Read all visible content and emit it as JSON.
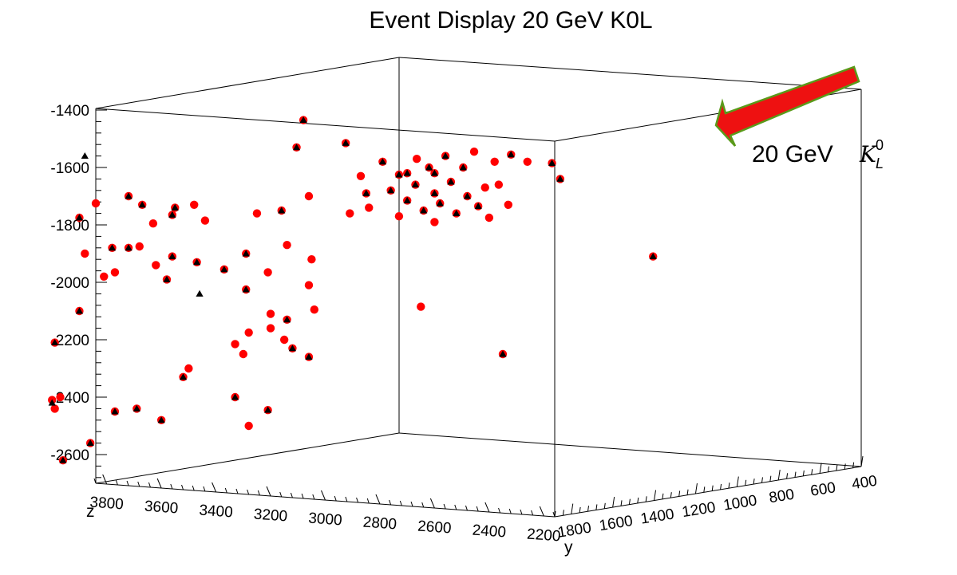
{
  "chart_data": {
    "type": "scatter",
    "title": "Event Display   20 GeV K0L",
    "axes": {
      "vertical": {
        "ticks": [
          "-1400",
          "-1600",
          "-1800",
          "-2000",
          "-2200",
          "-2400",
          "-2600"
        ]
      },
      "z": {
        "name": "z",
        "ticks": [
          "3800",
          "3600",
          "3400",
          "3200",
          "3000",
          "2800",
          "2600",
          "2400",
          "2200"
        ]
      },
      "y": {
        "name": "y",
        "ticks": [
          "1800",
          "1600",
          "1400",
          "1200",
          "1000",
          "800",
          "600",
          "400"
        ]
      }
    },
    "grid": false,
    "annotation": {
      "text": "20 GeV",
      "symbol": "K",
      "sub": "L",
      "sup": "0",
      "arrow_color": "#ee1111",
      "arrow_edge": "#5a9a1a"
    },
    "series": [
      {
        "marker": "red circle",
        "color": "#ff0000",
        "points": [
          [
            -1435,
            3080
          ],
          [
            -1515,
            2925
          ],
          [
            -1530,
            3105
          ],
          [
            -1555,
            2320
          ],
          [
            -1585,
            2170
          ],
          [
            -1580,
            2380
          ],
          [
            -1600,
            2620
          ],
          [
            -1640,
            2140
          ],
          [
            -1660,
            2365
          ],
          [
            -1620,
            2700
          ],
          [
            -1700,
            3060
          ],
          [
            -1690,
            2850
          ],
          [
            -1545,
            2455
          ],
          [
            -1560,
            2560
          ],
          [
            -1570,
            2665
          ],
          [
            -1580,
            2790
          ],
          [
            -1600,
            2495
          ],
          [
            -1620,
            2600
          ],
          [
            -1625,
            2730
          ],
          [
            -1630,
            2870
          ],
          [
            -1650,
            2540
          ],
          [
            -1660,
            2670
          ],
          [
            -1670,
            2415
          ],
          [
            -1680,
            2760
          ],
          [
            -1690,
            2600
          ],
          [
            -1700,
            2480
          ],
          [
            -1715,
            2700
          ],
          [
            -1725,
            2580
          ],
          [
            -1735,
            2440
          ],
          [
            -1750,
            2640
          ],
          [
            -1760,
            2520
          ],
          [
            -1770,
            2730
          ],
          [
            -1775,
            2400
          ],
          [
            -1790,
            2600
          ],
          [
            -1740,
            2840
          ],
          [
            -1760,
            2910
          ],
          [
            -1580,
            2260
          ],
          [
            -1730,
            2330
          ],
          [
            -1700,
            3720
          ],
          [
            -1725,
            3840
          ],
          [
            -1730,
            3670
          ],
          [
            -1765,
            3560
          ],
          [
            -1785,
            3440
          ],
          [
            -1795,
            3630
          ],
          [
            -1740,
            3550
          ],
          [
            -1730,
            3480
          ],
          [
            -1750,
            3160
          ],
          [
            -1760,
            3250
          ],
          [
            -1775,
            3900
          ],
          [
            -1880,
            3720
          ],
          [
            -1900,
            3290
          ],
          [
            -1870,
            3140
          ],
          [
            -1900,
            3880
          ],
          [
            -1910,
            3560
          ],
          [
            -1920,
            3050
          ],
          [
            -1930,
            3470
          ],
          [
            -1940,
            3620
          ],
          [
            -1955,
            3370
          ],
          [
            -1965,
            3210
          ],
          [
            -1980,
            3810
          ],
          [
            -1990,
            3580
          ],
          [
            -2010,
            3060
          ],
          [
            -2025,
            3290
          ],
          [
            -1875,
            3680
          ],
          [
            -1880,
            3780
          ],
          [
            -1965,
            3770
          ],
          [
            -2095,
            3040
          ],
          [
            -2110,
            3200
          ],
          [
            -2085,
            2650
          ],
          [
            -2130,
            3140
          ],
          [
            -2160,
            3200
          ],
          [
            -2175,
            3280
          ],
          [
            -2200,
            3150
          ],
          [
            -2215,
            3330
          ],
          [
            -2230,
            3120
          ],
          [
            -2250,
            3300
          ],
          [
            -2300,
            3500
          ],
          [
            -2330,
            3520
          ],
          [
            -2100,
            3900
          ],
          [
            -2260,
            3060
          ],
          [
            -2400,
            3330
          ],
          [
            -2440,
            3690
          ],
          [
            -2480,
            3600
          ],
          [
            -2445,
            3210
          ],
          [
            -2500,
            3280
          ],
          [
            -2210,
            3990
          ],
          [
            -2620,
            3960
          ],
          [
            -2560,
            3860
          ],
          [
            -2450,
            3770
          ],
          [
            -2250,
            2350
          ],
          [
            -1910,
            1800
          ],
          [
            -2410,
            4000
          ],
          [
            -2440,
            3990
          ],
          [
            -2400,
            3970
          ]
        ]
      },
      {
        "marker": "black triangle",
        "color": "#000000",
        "points": [
          [
            -1435,
            3080
          ],
          [
            -1515,
            2925
          ],
          [
            -1530,
            3105
          ],
          [
            -1555,
            2320
          ],
          [
            -1585,
            2170
          ],
          [
            -1600,
            2620
          ],
          [
            -1640,
            2140
          ],
          [
            -1620,
            2700
          ],
          [
            -1690,
            2850
          ],
          [
            -1560,
            2560
          ],
          [
            -1580,
            2790
          ],
          [
            -1600,
            2495
          ],
          [
            -1625,
            2730
          ],
          [
            -1650,
            2540
          ],
          [
            -1680,
            2760
          ],
          [
            -1690,
            2600
          ],
          [
            -1715,
            2700
          ],
          [
            -1735,
            2440
          ],
          [
            -1760,
            2520
          ],
          [
            -1620,
            2600
          ],
          [
            -1660,
            2670
          ],
          [
            -1700,
            2480
          ],
          [
            -1725,
            2580
          ],
          [
            -1750,
            2640
          ],
          [
            -1700,
            3720
          ],
          [
            -1730,
            3670
          ],
          [
            -1765,
            3560
          ],
          [
            -1740,
            3550
          ],
          [
            -1750,
            3160
          ],
          [
            -1775,
            3900
          ],
          [
            -1880,
            3720
          ],
          [
            -1900,
            3290
          ],
          [
            -1910,
            3560
          ],
          [
            -1930,
            3470
          ],
          [
            -1955,
            3370
          ],
          [
            -1990,
            3580
          ],
          [
            -2025,
            3290
          ],
          [
            -1880,
            3780
          ],
          [
            -1560,
            3880
          ],
          [
            -2040,
            3460
          ],
          [
            -2130,
            3140
          ],
          [
            -2230,
            3120
          ],
          [
            -2330,
            3520
          ],
          [
            -2100,
            3900
          ],
          [
            -2260,
            3060
          ],
          [
            -2400,
            3330
          ],
          [
            -2440,
            3690
          ],
          [
            -2480,
            3600
          ],
          [
            -2445,
            3210
          ],
          [
            -2210,
            3990
          ],
          [
            -2620,
            3960
          ],
          [
            -2560,
            3860
          ],
          [
            -2450,
            3770
          ],
          [
            -2250,
            2350
          ],
          [
            -1910,
            1800
          ],
          [
            -2420,
            4000
          ]
        ]
      }
    ]
  }
}
